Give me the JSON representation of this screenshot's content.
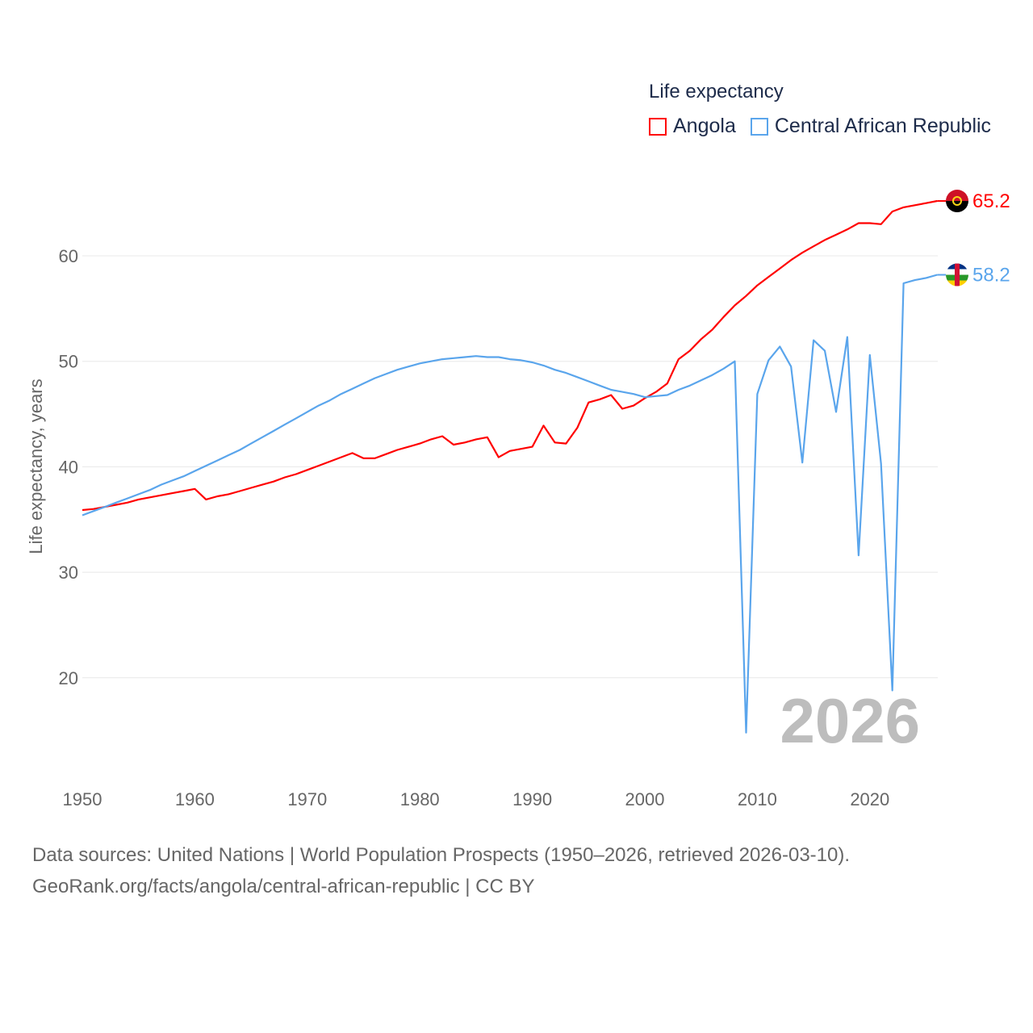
{
  "legend": {
    "title": "Life expectancy",
    "items": [
      {
        "label": "Angola",
        "color": "#ff0000"
      },
      {
        "label": "Central African Republic",
        "color": "#5aa5ec"
      }
    ]
  },
  "footer": {
    "line1": "Data sources: United Nations | World Population Prospects (1950–2026, retrieved 2026-03-10).",
    "line2": "GeoRank.org/facts/angola/central-african-republic | CC BY"
  },
  "chart_data": {
    "type": "line",
    "title": "Life expectancy",
    "ylabel": "Life expectancy, years",
    "xlabel": "",
    "current_year_label": "2026",
    "xlim": [
      1950,
      2026
    ],
    "ylim": [
      12,
      68
    ],
    "x_ticks": [
      1950,
      1960,
      1970,
      1980,
      1990,
      2000,
      2010,
      2020
    ],
    "y_ticks": [
      20,
      30,
      40,
      50,
      60
    ],
    "grid": true,
    "legend_position": "top-right",
    "x_start": 1950,
    "series": [
      {
        "name": "Angola",
        "color": "#ff0000",
        "end_label": "65.2",
        "values": [
          35.9,
          36.0,
          36.2,
          36.4,
          36.6,
          36.9,
          37.1,
          37.3,
          37.5,
          37.7,
          37.9,
          36.9,
          37.2,
          37.4,
          37.7,
          38.0,
          38.3,
          38.6,
          39.0,
          39.3,
          39.7,
          40.1,
          40.5,
          40.9,
          41.3,
          40.8,
          40.8,
          41.2,
          41.6,
          41.9,
          42.2,
          42.6,
          42.9,
          42.1,
          42.3,
          42.6,
          42.8,
          40.9,
          41.5,
          41.7,
          41.9,
          43.9,
          42.3,
          42.2,
          43.7,
          46.1,
          46.4,
          46.8,
          45.5,
          45.8,
          46.5,
          47.1,
          47.9,
          50.2,
          51.0,
          52.1,
          53.0,
          54.2,
          55.3,
          56.2,
          57.2,
          58.0,
          58.8,
          59.6,
          60.3,
          60.9,
          61.5,
          62.0,
          62.5,
          63.1,
          63.1,
          63.0,
          64.2,
          64.6,
          64.8,
          65.0,
          65.2
        ]
      },
      {
        "name": "Central African Republic",
        "color": "#5aa5ec",
        "end_label": "58.2",
        "values": [
          35.4,
          35.8,
          36.2,
          36.6,
          37.0,
          37.4,
          37.8,
          38.3,
          38.7,
          39.1,
          39.6,
          40.1,
          40.6,
          41.1,
          41.6,
          42.2,
          42.8,
          43.4,
          44.0,
          44.6,
          45.2,
          45.8,
          46.3,
          46.9,
          47.4,
          47.9,
          48.4,
          48.8,
          49.2,
          49.5,
          49.8,
          50.0,
          50.2,
          50.3,
          50.4,
          50.5,
          50.4,
          50.4,
          50.2,
          50.1,
          49.9,
          49.6,
          49.2,
          48.9,
          48.5,
          48.1,
          47.7,
          47.3,
          47.1,
          46.9,
          46.6,
          46.7,
          46.8,
          47.3,
          47.7,
          48.2,
          48.7,
          49.3,
          50.0,
          14.8,
          46.9,
          50.1,
          51.4,
          49.5,
          40.4,
          52.0,
          51.0,
          45.2,
          52.3,
          31.6,
          50.6,
          40.3,
          18.8,
          57.4,
          57.7,
          57.9,
          58.2
        ]
      }
    ]
  }
}
